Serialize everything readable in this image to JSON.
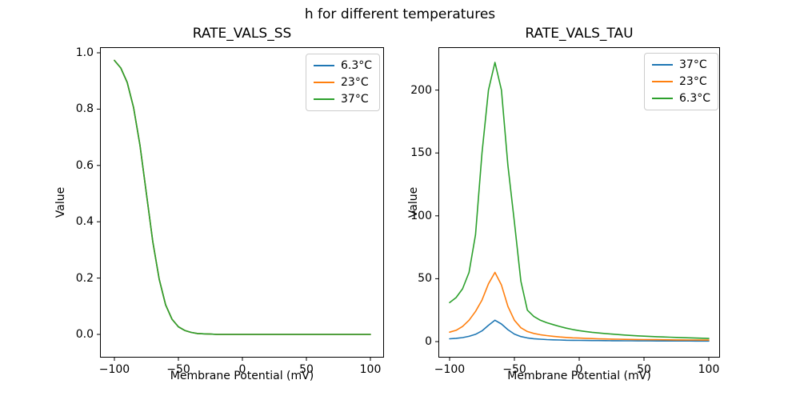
{
  "figure": {
    "title": "h for different temperatures",
    "background": "#ffffff"
  },
  "colors": {
    "series_blue": "#1f77b4",
    "series_orange": "#ff7f0e",
    "series_green": "#2ca02c",
    "axis": "#000000",
    "legend_border": "#cccccc"
  },
  "chart_data": [
    {
      "type": "line",
      "title": "RATE_VALS_SS",
      "xlabel": "Membrane Potential (mV)",
      "ylabel": "Value",
      "xlim": [
        -110,
        110
      ],
      "ylim": [
        -0.05,
        1.02
      ],
      "grid": false,
      "legend_position": "upper right",
      "xticks": [
        -100,
        -50,
        0,
        50,
        100
      ],
      "xtick_labels": [
        "−100",
        "−50",
        "0",
        "50",
        "100"
      ],
      "yticks": [
        0.0,
        0.2,
        0.4,
        0.6,
        0.8,
        1.0
      ],
      "ytick_labels": [
        "0.0",
        "0.2",
        "0.4",
        "0.6",
        "0.8",
        "1.0"
      ],
      "note": "all three temperature series coincide exactly; green 37°C drawn last so only green is visible",
      "x": [
        -100,
        -95,
        -90,
        -85,
        -80,
        -75,
        -70,
        -65,
        -60,
        -55,
        -50,
        -45,
        -40,
        -35,
        -30,
        -25,
        -20,
        -15,
        -10,
        -5,
        0,
        5,
        10,
        15,
        20,
        25,
        30,
        35,
        40,
        45,
        50,
        55,
        60,
        65,
        70,
        75,
        80,
        85,
        90,
        95,
        100
      ],
      "series": [
        {
          "name": "6.3°C",
          "color": "#1f77b4",
          "values": [
            0.973,
            0.946,
            0.895,
            0.805,
            0.671,
            0.5,
            0.329,
            0.196,
            0.105,
            0.054,
            0.027,
            0.014,
            0.007,
            0.003,
            0.002,
            0.001,
            0,
            0,
            0,
            0,
            0,
            0,
            0,
            0,
            0,
            0,
            0,
            0,
            0,
            0,
            0,
            0,
            0,
            0,
            0,
            0,
            0,
            0,
            0,
            0,
            0
          ]
        },
        {
          "name": "23°C",
          "color": "#ff7f0e",
          "values": [
            0.973,
            0.946,
            0.895,
            0.805,
            0.671,
            0.5,
            0.329,
            0.196,
            0.105,
            0.054,
            0.027,
            0.014,
            0.007,
            0.003,
            0.002,
            0.001,
            0,
            0,
            0,
            0,
            0,
            0,
            0,
            0,
            0,
            0,
            0,
            0,
            0,
            0,
            0,
            0,
            0,
            0,
            0,
            0,
            0,
            0,
            0,
            0,
            0
          ]
        },
        {
          "name": "37°C",
          "color": "#2ca02c",
          "values": [
            0.973,
            0.946,
            0.895,
            0.805,
            0.671,
            0.5,
            0.329,
            0.196,
            0.105,
            0.054,
            0.027,
            0.014,
            0.007,
            0.003,
            0.002,
            0.001,
            0,
            0,
            0,
            0,
            0,
            0,
            0,
            0,
            0,
            0,
            0,
            0,
            0,
            0,
            0,
            0,
            0,
            0,
            0,
            0,
            0,
            0,
            0,
            0,
            0
          ]
        }
      ],
      "legend": [
        {
          "label": "6.3°C",
          "color": "#1f77b4"
        },
        {
          "label": "23°C",
          "color": "#ff7f0e"
        },
        {
          "label": "37°C",
          "color": "#2ca02c"
        }
      ]
    },
    {
      "type": "line",
      "title": "RATE_VALS_TAU",
      "xlabel": "Membrane Potential (mV)",
      "ylabel": "Value",
      "xlim": [
        -110,
        110
      ],
      "ylim": [
        -10,
        233
      ],
      "grid": false,
      "legend_position": "upper right",
      "xticks": [
        -100,
        -50,
        0,
        50,
        100
      ],
      "xtick_labels": [
        "−100",
        "−50",
        "0",
        "50",
        "100"
      ],
      "yticks": [
        0,
        50,
        100,
        150,
        200
      ],
      "ytick_labels": [
        "0",
        "50",
        "100",
        "150",
        "200"
      ],
      "note": "peaked curves, maximum near −65 mV; peaks approx: 6.3°C 222, 23°C 55, 37°C 17",
      "x": [
        -100,
        -95,
        -90,
        -85,
        -80,
        -75,
        -70,
        -65,
        -60,
        -55,
        -50,
        -45,
        -40,
        -35,
        -30,
        -25,
        -20,
        -15,
        -10,
        -5,
        0,
        5,
        10,
        15,
        20,
        25,
        30,
        35,
        40,
        45,
        50,
        55,
        60,
        65,
        70,
        75,
        80,
        85,
        90,
        95,
        100
      ],
      "series": [
        {
          "name": "37°C",
          "color": "#1f77b4",
          "values": [
            2.2,
            2.6,
            3.2,
            4.2,
            5.8,
            8.5,
            13,
            17,
            14,
            9.5,
            6,
            4,
            2.9,
            2.3,
            1.9,
            1.6,
            1.4,
            1.25,
            1.1,
            1.0,
            0.95,
            0.9,
            0.85,
            0.8,
            0.76,
            0.72,
            0.68,
            0.65,
            0.62,
            0.6,
            0.58,
            0.56,
            0.54,
            0.52,
            0.51,
            0.5,
            0.49,
            0.48,
            0.47,
            0.46,
            0.45
          ]
        },
        {
          "name": "23°C",
          "color": "#ff7f0e",
          "values": [
            7.5,
            9,
            12,
            17,
            24,
            33,
            46,
            55,
            45,
            28,
            17,
            11,
            8,
            6.5,
            5.5,
            4.8,
            4.2,
            3.7,
            3.3,
            3.0,
            2.8,
            2.6,
            2.4,
            2.25,
            2.1,
            2.0,
            1.9,
            1.8,
            1.72,
            1.65,
            1.6,
            1.55,
            1.5,
            1.45,
            1.4,
            1.36,
            1.32,
            1.29,
            1.26,
            1.23,
            1.2
          ]
        },
        {
          "name": "6.3°C",
          "color": "#2ca02c",
          "values": [
            31,
            35,
            42,
            55,
            85,
            150,
            200,
            222,
            200,
            140,
            95,
            48,
            25,
            20,
            17,
            15,
            13.5,
            12,
            10.7,
            9.6,
            8.7,
            8.0,
            7.4,
            6.9,
            6.4,
            6.0,
            5.6,
            5.2,
            4.9,
            4.6,
            4.3,
            4.1,
            3.9,
            3.7,
            3.5,
            3.3,
            3.1,
            3.0,
            2.8,
            2.65,
            2.5
          ]
        }
      ],
      "legend": [
        {
          "label": "37°C",
          "color": "#1f77b4"
        },
        {
          "label": "23°C",
          "color": "#ff7f0e"
        },
        {
          "label": "6.3°C",
          "color": "#2ca02c"
        }
      ]
    }
  ]
}
